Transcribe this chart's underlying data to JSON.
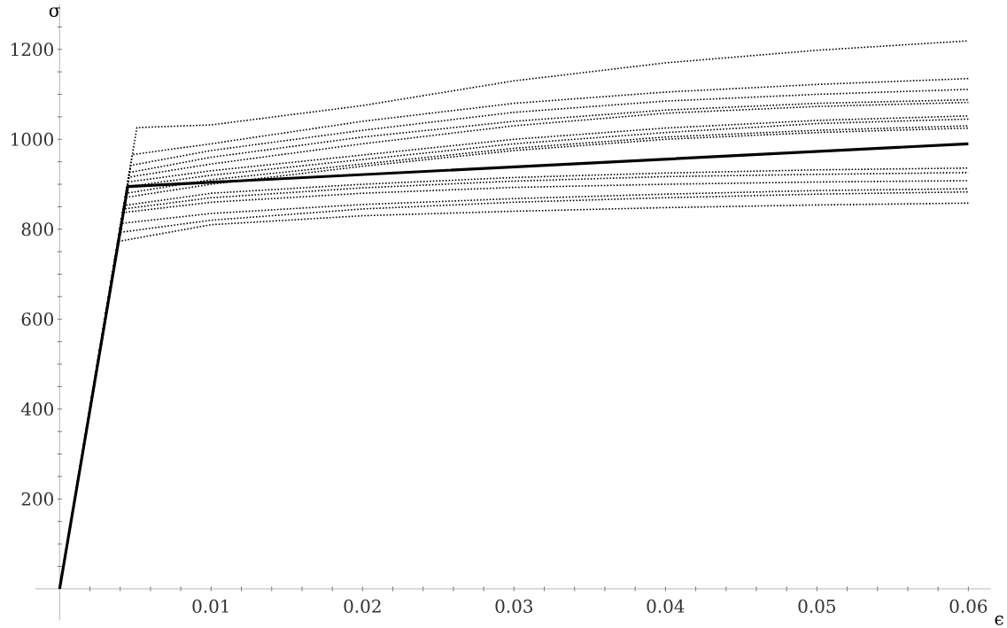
{
  "chart_data": {
    "type": "line",
    "xlabel": "ϵ",
    "ylabel": "σ",
    "xlim": [
      -0.0016,
      0.0615
    ],
    "ylim": [
      -70,
      1300
    ],
    "xticks": [
      {
        "value": 0.002,
        "label": null
      },
      {
        "value": 0.004,
        "label": null
      },
      {
        "value": 0.006,
        "label": null
      },
      {
        "value": 0.008,
        "label": null
      },
      0.01,
      {
        "value": 0.012,
        "label": null
      },
      {
        "value": 0.014,
        "label": null
      },
      {
        "value": 0.016,
        "label": null
      },
      {
        "value": 0.018,
        "label": null
      },
      0.02,
      {
        "value": 0.022,
        "label": null
      },
      {
        "value": 0.024,
        "label": null
      },
      {
        "value": 0.026,
        "label": null
      },
      {
        "value": 0.028,
        "label": null
      },
      0.03,
      {
        "value": 0.032,
        "label": null
      },
      {
        "value": 0.034,
        "label": null
      },
      {
        "value": 0.036,
        "label": null
      },
      {
        "value": 0.038,
        "label": null
      },
      0.04,
      {
        "value": 0.042,
        "label": null
      },
      {
        "value": 0.044,
        "label": null
      },
      {
        "value": 0.046,
        "label": null
      },
      {
        "value": 0.048,
        "label": null
      },
      0.05,
      {
        "value": 0.052,
        "label": null
      },
      {
        "value": 0.054,
        "label": null
      },
      {
        "value": 0.056,
        "label": null
      },
      {
        "value": 0.058,
        "label": null
      },
      0.06
    ],
    "yticks": [
      {
        "value": 50,
        "label": null
      },
      {
        "value": 100,
        "label": null
      },
      {
        "value": 150,
        "label": null
      },
      200,
      {
        "value": 250,
        "label": null
      },
      {
        "value": 300,
        "label": null
      },
      {
        "value": 350,
        "label": null
      },
      400,
      {
        "value": 450,
        "label": null
      },
      {
        "value": 500,
        "label": null
      },
      {
        "value": 550,
        "label": null
      },
      600,
      {
        "value": 650,
        "label": null
      },
      {
        "value": 700,
        "label": null
      },
      {
        "value": 750,
        "label": null
      },
      800,
      {
        "value": 850,
        "label": null
      },
      {
        "value": 900,
        "label": null
      },
      {
        "value": 950,
        "label": null
      },
      1000,
      {
        "value": 1050,
        "label": null
      },
      {
        "value": 1100,
        "label": null
      },
      {
        "value": 1150,
        "label": null
      },
      1200,
      {
        "value": 1250,
        "label": null
      }
    ],
    "grid": false,
    "series": [
      {
        "color": "#000000",
        "line_style": "dotted",
        "x": [
          0,
          0.0051,
          0.01,
          0.02,
          0.03,
          0.04,
          0.05,
          0.06
        ],
        "values": [
          0,
          1026,
          1032,
          1075,
          1130,
          1170,
          1198,
          1219
        ]
      },
      {
        "color": "#000000",
        "line_style": "dotted",
        "x": [
          0,
          0.0048,
          0.01,
          0.02,
          0.03,
          0.04,
          0.05,
          0.06
        ],
        "values": [
          0,
          966,
          990,
          1040,
          1080,
          1105,
          1122,
          1135
        ]
      },
      {
        "color": "#000000",
        "line_style": "dotted",
        "x": [
          0,
          0.0047,
          0.01,
          0.02,
          0.03,
          0.04,
          0.05,
          0.06
        ],
        "values": [
          0,
          942,
          975,
          1020,
          1060,
          1085,
          1100,
          1111
        ]
      },
      {
        "color": "#000000",
        "line_style": "dotted",
        "x": [
          0,
          0.0046,
          0.01,
          0.02,
          0.03,
          0.04,
          0.05,
          0.06
        ],
        "values": [
          0,
          926,
          960,
          1005,
          1040,
          1065,
          1080,
          1088
        ]
      },
      {
        "color": "#000000",
        "line_style": "dotted",
        "x": [
          0,
          0.0046,
          0.01,
          0.02,
          0.03,
          0.04,
          0.05,
          0.06
        ],
        "values": [
          0,
          916,
          945,
          990,
          1030,
          1058,
          1073,
          1082
        ]
      },
      {
        "color": "#000000",
        "line_style": "dotted",
        "x": [
          0,
          0.0045,
          0.01,
          0.02,
          0.03,
          0.04,
          0.05,
          0.06
        ],
        "values": [
          0,
          905,
          930,
          965,
          1000,
          1025,
          1042,
          1052
        ]
      },
      {
        "color": "#000000",
        "line_style": "dotted",
        "x": [
          0,
          0.0045,
          0.01,
          0.02,
          0.03,
          0.04,
          0.05,
          0.06
        ],
        "values": [
          0,
          895,
          920,
          955,
          990,
          1015,
          1035,
          1045
        ]
      },
      {
        "color": "#000000",
        "line_style": "dotted",
        "x": [
          0,
          0.0044,
          0.01,
          0.02,
          0.03,
          0.04,
          0.05,
          0.06
        ],
        "values": [
          0,
          880,
          910,
          945,
          980,
          1005,
          1020,
          1030
        ]
      },
      {
        "color": "#000000",
        "line_style": "dotted",
        "x": [
          0,
          0.0044,
          0.01,
          0.02,
          0.03,
          0.04,
          0.05,
          0.06
        ],
        "values": [
          0,
          871,
          900,
          940,
          975,
          1000,
          1015,
          1025
        ]
      },
      {
        "color": "#000000",
        "line_style": "dotted",
        "x": [
          0,
          0.0043,
          0.01,
          0.02,
          0.03,
          0.04,
          0.05,
          0.06
        ],
        "values": [
          0,
          853,
          880,
          900,
          915,
          925,
          932,
          936
        ]
      },
      {
        "color": "#000000",
        "line_style": "dotted",
        "x": [
          0,
          0.0042,
          0.01,
          0.02,
          0.03,
          0.04,
          0.05,
          0.06
        ],
        "values": [
          0,
          845,
          870,
          892,
          907,
          917,
          922,
          926
        ]
      },
      {
        "color": "#000000",
        "line_style": "dotted",
        "x": [
          0,
          0.0042,
          0.01,
          0.02,
          0.03,
          0.04,
          0.05,
          0.06
        ],
        "values": [
          0,
          837,
          860,
          880,
          893,
          900,
          905,
          908
        ]
      },
      {
        "color": "#000000",
        "line_style": "dotted",
        "x": [
          0,
          0.0041,
          0.01,
          0.02,
          0.03,
          0.04,
          0.05,
          0.06
        ],
        "values": [
          0,
          813,
          835,
          855,
          868,
          878,
          886,
          890
        ]
      },
      {
        "color": "#000000",
        "line_style": "dotted",
        "x": [
          0,
          0.004,
          0.01,
          0.02,
          0.03,
          0.04,
          0.05,
          0.06
        ],
        "values": [
          0,
          793,
          820,
          845,
          860,
          870,
          878,
          883
        ]
      },
      {
        "color": "#000000",
        "line_style": "dotted",
        "x": [
          0,
          0.0039,
          0.01,
          0.02,
          0.03,
          0.04,
          0.05,
          0.06
        ],
        "values": [
          0,
          773,
          810,
          830,
          840,
          848,
          854,
          858
        ]
      },
      {
        "color": "#000000",
        "line_style": "solid",
        "x": [
          0,
          0.0045,
          0.06
        ],
        "values": [
          0,
          895,
          990
        ]
      }
    ]
  }
}
